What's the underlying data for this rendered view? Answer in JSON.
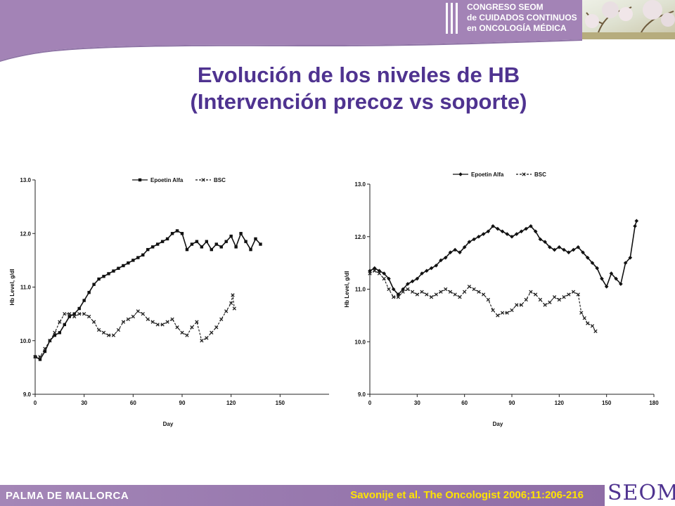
{
  "header": {
    "congress_lines": [
      "CONGRESO SEOM",
      "de CUIDADOS CONTINUOS",
      "en ONCOLOGÍA MÉDICA"
    ],
    "band_color": "#a383b6",
    "accent_color": "#4f3390"
  },
  "title": {
    "line1": "Evolución de los niveles de HB",
    "line2": "(Intervención precoz vs soporte)"
  },
  "footer": {
    "left_text": "PALMA DE MALLORCA",
    "citation": "Savonije et al.  The Oncologist 2006;11:206-216",
    "logo_text": "SEOM"
  },
  "chart_data": [
    {
      "type": "line",
      "xlabel": "Day",
      "ylabel": "Hb Level, g/dl",
      "xlim": [
        0,
        180
      ],
      "ylim": [
        9.0,
        13.0
      ],
      "xticks": [
        0,
        30,
        60,
        90,
        120,
        150
      ],
      "yticks": [
        "9.0",
        "10.0",
        "11.0",
        "12.0",
        "13.0"
      ],
      "legend": {
        "position": "top-center"
      },
      "series": [
        {
          "name": "Epoetin Alfa",
          "style": "solid",
          "marker": "square",
          "points": [
            [
              0,
              9.7
            ],
            [
              3,
              9.65
            ],
            [
              6,
              9.8
            ],
            [
              9,
              10.0
            ],
            [
              12,
              10.1
            ],
            [
              15,
              10.15
            ],
            [
              18,
              10.3
            ],
            [
              21,
              10.45
            ],
            [
              24,
              10.5
            ],
            [
              27,
              10.6
            ],
            [
              30,
              10.75
            ],
            [
              33,
              10.9
            ],
            [
              36,
              11.05
            ],
            [
              39,
              11.15
            ],
            [
              42,
              11.2
            ],
            [
              45,
              11.25
            ],
            [
              48,
              11.3
            ],
            [
              51,
              11.35
            ],
            [
              54,
              11.4
            ],
            [
              57,
              11.45
            ],
            [
              60,
              11.5
            ],
            [
              63,
              11.55
            ],
            [
              66,
              11.6
            ],
            [
              69,
              11.7
            ],
            [
              72,
              11.75
            ],
            [
              75,
              11.8
            ],
            [
              78,
              11.85
            ],
            [
              81,
              11.9
            ],
            [
              84,
              12.0
            ],
            [
              87,
              12.05
            ],
            [
              90,
              12.0
            ],
            [
              93,
              11.7
            ],
            [
              96,
              11.8
            ],
            [
              99,
              11.85
            ],
            [
              102,
              11.75
            ],
            [
              105,
              11.85
            ],
            [
              108,
              11.7
            ],
            [
              111,
              11.8
            ],
            [
              114,
              11.75
            ],
            [
              117,
              11.85
            ],
            [
              120,
              11.95
            ],
            [
              123,
              11.75
            ],
            [
              126,
              12.0
            ],
            [
              129,
              11.85
            ],
            [
              132,
              11.7
            ],
            [
              135,
              11.9
            ],
            [
              138,
              11.8
            ]
          ]
        },
        {
          "name": "BSC",
          "style": "dashed",
          "marker": "x",
          "points": [
            [
              0,
              9.7
            ],
            [
              3,
              9.7
            ],
            [
              6,
              9.85
            ],
            [
              9,
              10.0
            ],
            [
              12,
              10.15
            ],
            [
              15,
              10.35
            ],
            [
              18,
              10.5
            ],
            [
              21,
              10.5
            ],
            [
              24,
              10.45
            ],
            [
              27,
              10.5
            ],
            [
              30,
              10.5
            ],
            [
              33,
              10.45
            ],
            [
              36,
              10.35
            ],
            [
              39,
              10.2
            ],
            [
              42,
              10.15
            ],
            [
              45,
              10.1
            ],
            [
              48,
              10.1
            ],
            [
              51,
              10.2
            ],
            [
              54,
              10.35
            ],
            [
              57,
              10.4
            ],
            [
              60,
              10.45
            ],
            [
              63,
              10.55
            ],
            [
              66,
              10.5
            ],
            [
              69,
              10.4
            ],
            [
              72,
              10.35
            ],
            [
              75,
              10.3
            ],
            [
              78,
              10.3
            ],
            [
              81,
              10.35
            ],
            [
              84,
              10.4
            ],
            [
              87,
              10.25
            ],
            [
              90,
              10.15
            ],
            [
              93,
              10.1
            ],
            [
              96,
              10.25
            ],
            [
              99,
              10.35
            ],
            [
              102,
              10.0
            ],
            [
              105,
              10.05
            ],
            [
              108,
              10.15
            ],
            [
              111,
              10.25
            ],
            [
              114,
              10.4
            ],
            [
              117,
              10.55
            ],
            [
              120,
              10.7
            ],
            [
              121,
              10.85
            ],
            [
              122,
              10.6
            ]
          ]
        }
      ]
    },
    {
      "type": "line",
      "xlabel": "Day",
      "ylabel": "Hb Level, g/dl",
      "xlim": [
        0,
        180
      ],
      "ylim": [
        9.0,
        13.0
      ],
      "xticks": [
        0,
        30,
        60,
        90,
        120,
        150,
        180
      ],
      "yticks": [
        "9.0",
        "10.0",
        "11.0",
        "12.0",
        "13.0"
      ],
      "legend": {
        "position": "top-center"
      },
      "series": [
        {
          "name": "Epoetin Alfa",
          "style": "solid",
          "marker": "diamond",
          "points": [
            [
              0,
              11.35
            ],
            [
              3,
              11.4
            ],
            [
              6,
              11.35
            ],
            [
              9,
              11.3
            ],
            [
              12,
              11.2
            ],
            [
              15,
              11.0
            ],
            [
              18,
              10.9
            ],
            [
              21,
              11.0
            ],
            [
              24,
              11.1
            ],
            [
              27,
              11.15
            ],
            [
              30,
              11.2
            ],
            [
              33,
              11.3
            ],
            [
              36,
              11.35
            ],
            [
              39,
              11.4
            ],
            [
              42,
              11.45
            ],
            [
              45,
              11.55
            ],
            [
              48,
              11.6
            ],
            [
              51,
              11.7
            ],
            [
              54,
              11.75
            ],
            [
              57,
              11.7
            ],
            [
              60,
              11.8
            ],
            [
              63,
              11.9
            ],
            [
              66,
              11.95
            ],
            [
              69,
              12.0
            ],
            [
              72,
              12.05
            ],
            [
              75,
              12.1
            ],
            [
              78,
              12.2
            ],
            [
              81,
              12.15
            ],
            [
              84,
              12.1
            ],
            [
              87,
              12.05
            ],
            [
              90,
              12.0
            ],
            [
              93,
              12.05
            ],
            [
              96,
              12.1
            ],
            [
              99,
              12.15
            ],
            [
              102,
              12.2
            ],
            [
              105,
              12.1
            ],
            [
              108,
              11.95
            ],
            [
              111,
              11.9
            ],
            [
              114,
              11.8
            ],
            [
              117,
              11.75
            ],
            [
              120,
              11.8
            ],
            [
              123,
              11.75
            ],
            [
              126,
              11.7
            ],
            [
              129,
              11.75
            ],
            [
              132,
              11.8
            ],
            [
              135,
              11.7
            ],
            [
              138,
              11.6
            ],
            [
              141,
              11.5
            ],
            [
              144,
              11.4
            ],
            [
              147,
              11.2
            ],
            [
              150,
              11.05
            ],
            [
              153,
              11.3
            ],
            [
              156,
              11.2
            ],
            [
              159,
              11.1
            ],
            [
              162,
              11.5
            ],
            [
              165,
              11.6
            ],
            [
              168,
              12.2
            ],
            [
              169,
              12.3
            ]
          ]
        },
        {
          "name": "BSC",
          "style": "dashed",
          "marker": "x",
          "points": [
            [
              0,
              11.3
            ],
            [
              3,
              11.35
            ],
            [
              6,
              11.3
            ],
            [
              9,
              11.2
            ],
            [
              12,
              11.0
            ],
            [
              15,
              10.85
            ],
            [
              18,
              10.85
            ],
            [
              21,
              10.95
            ],
            [
              24,
              11.0
            ],
            [
              27,
              10.95
            ],
            [
              30,
              10.9
            ],
            [
              33,
              10.95
            ],
            [
              36,
              10.9
            ],
            [
              39,
              10.85
            ],
            [
              42,
              10.9
            ],
            [
              45,
              10.95
            ],
            [
              48,
              11.0
            ],
            [
              51,
              10.95
            ],
            [
              54,
              10.9
            ],
            [
              57,
              10.85
            ],
            [
              60,
              10.95
            ],
            [
              63,
              11.05
            ],
            [
              66,
              11.0
            ],
            [
              69,
              10.95
            ],
            [
              72,
              10.9
            ],
            [
              75,
              10.8
            ],
            [
              78,
              10.6
            ],
            [
              81,
              10.5
            ],
            [
              84,
              10.55
            ],
            [
              87,
              10.55
            ],
            [
              90,
              10.6
            ],
            [
              93,
              10.7
            ],
            [
              96,
              10.7
            ],
            [
              99,
              10.8
            ],
            [
              102,
              10.95
            ],
            [
              105,
              10.9
            ],
            [
              108,
              10.8
            ],
            [
              111,
              10.7
            ],
            [
              114,
              10.75
            ],
            [
              117,
              10.85
            ],
            [
              120,
              10.8
            ],
            [
              123,
              10.85
            ],
            [
              126,
              10.9
            ],
            [
              129,
              10.95
            ],
            [
              132,
              10.9
            ],
            [
              134,
              10.55
            ],
            [
              136,
              10.45
            ],
            [
              138,
              10.35
            ],
            [
              141,
              10.3
            ],
            [
              143,
              10.2
            ]
          ]
        }
      ]
    }
  ]
}
